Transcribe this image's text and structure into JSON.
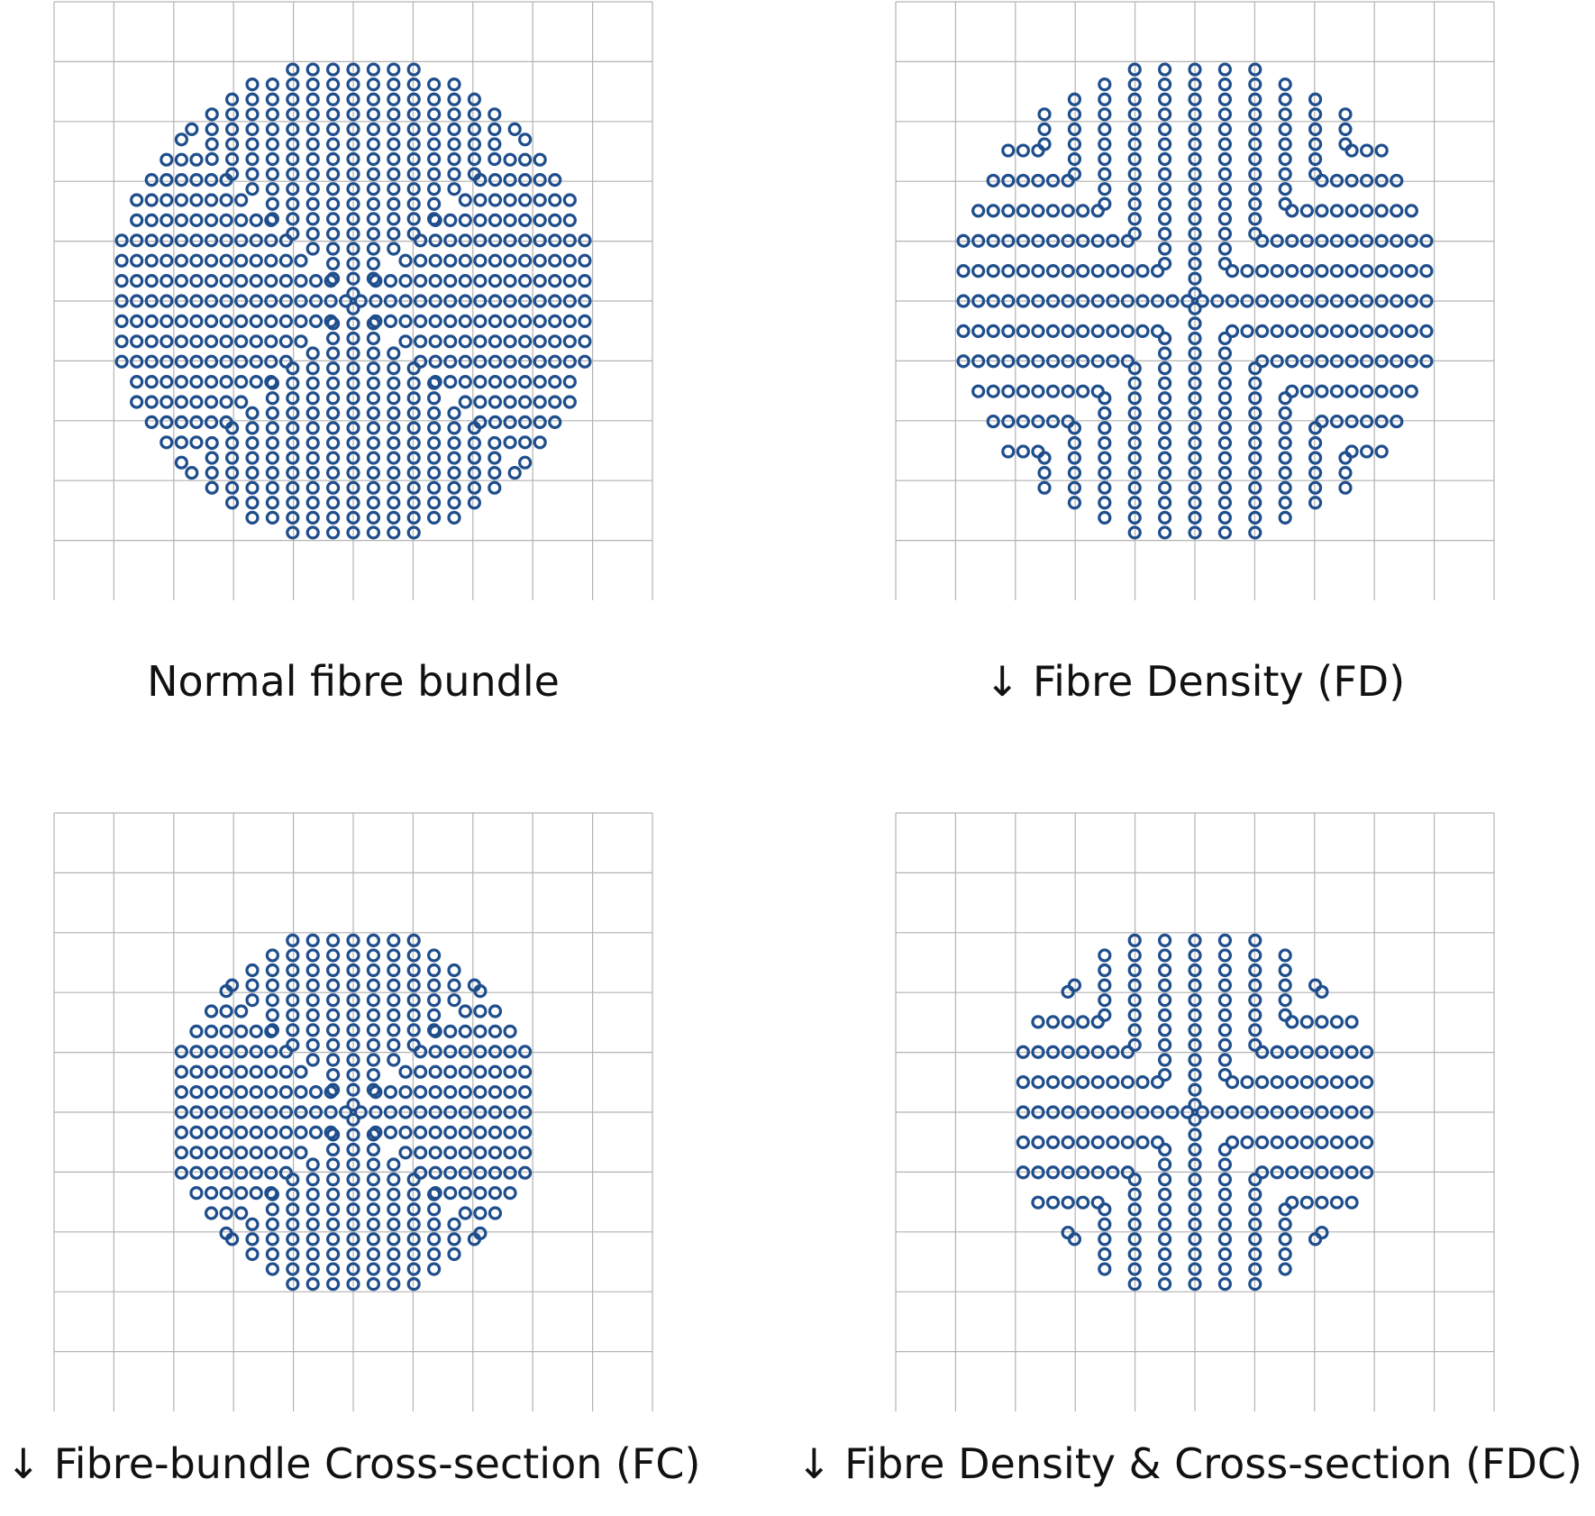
{
  "colors": {
    "fibre": "#1f4e8c",
    "grid": "#b3b3b3",
    "text": "#111111"
  },
  "panels": [
    {
      "id": "normal",
      "caption": "Normal fibre bundle",
      "bundle_radius_fraction": 0.4,
      "fibre_density_fraction": 1.0
    },
    {
      "id": "fd",
      "caption": "↓ Fibre Density (FD)",
      "bundle_radius_fraction": 0.4,
      "fibre_density_fraction": 0.45
    },
    {
      "id": "fc",
      "caption": "↓ Fibre-bundle Cross-section (FC)",
      "bundle_radius_fraction": 0.3,
      "fibre_density_fraction": 1.0
    },
    {
      "id": "fdc",
      "caption": "↓ Fibre Density & Cross-section (FDC)",
      "bundle_radius_fraction": 0.3,
      "fibre_density_fraction": 0.45
    }
  ]
}
